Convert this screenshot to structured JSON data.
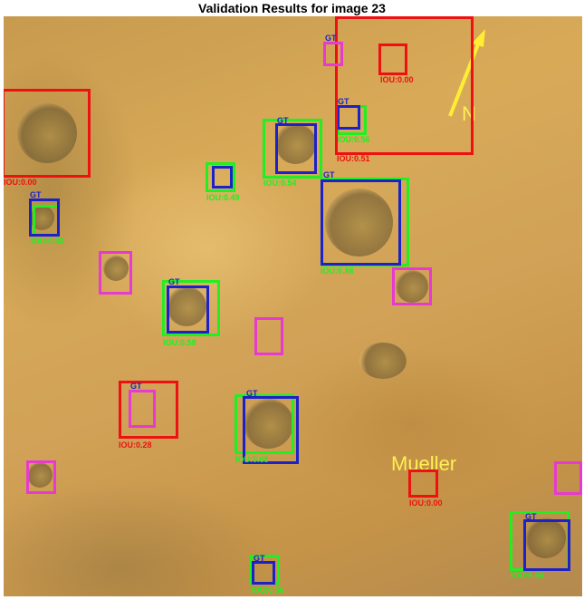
{
  "title": "Validation Results for image 23",
  "overlay": {
    "north": "N",
    "place": "Mueller"
  },
  "colors": {
    "ground_truth": "#1a22c8",
    "matched": "#22ee22",
    "unmatched_prediction": "#ee1111",
    "missed": "#e63ad0",
    "annotation": "#ffee55"
  },
  "labels": {
    "gt": "GT",
    "iou": [
      "IOU:0.00",
      "IOU:0.63",
      "IOU:0.49",
      "IOU:0.54",
      "IOU:0.56",
      "IOU:0.88",
      "IOU:0.58",
      "IOU:0.28",
      "IOU:0.68",
      "IOU:0.00",
      "IOU:0.84",
      "IOU:0.56",
      "IOU:0.00",
      "IOU:0.51"
    ]
  }
}
